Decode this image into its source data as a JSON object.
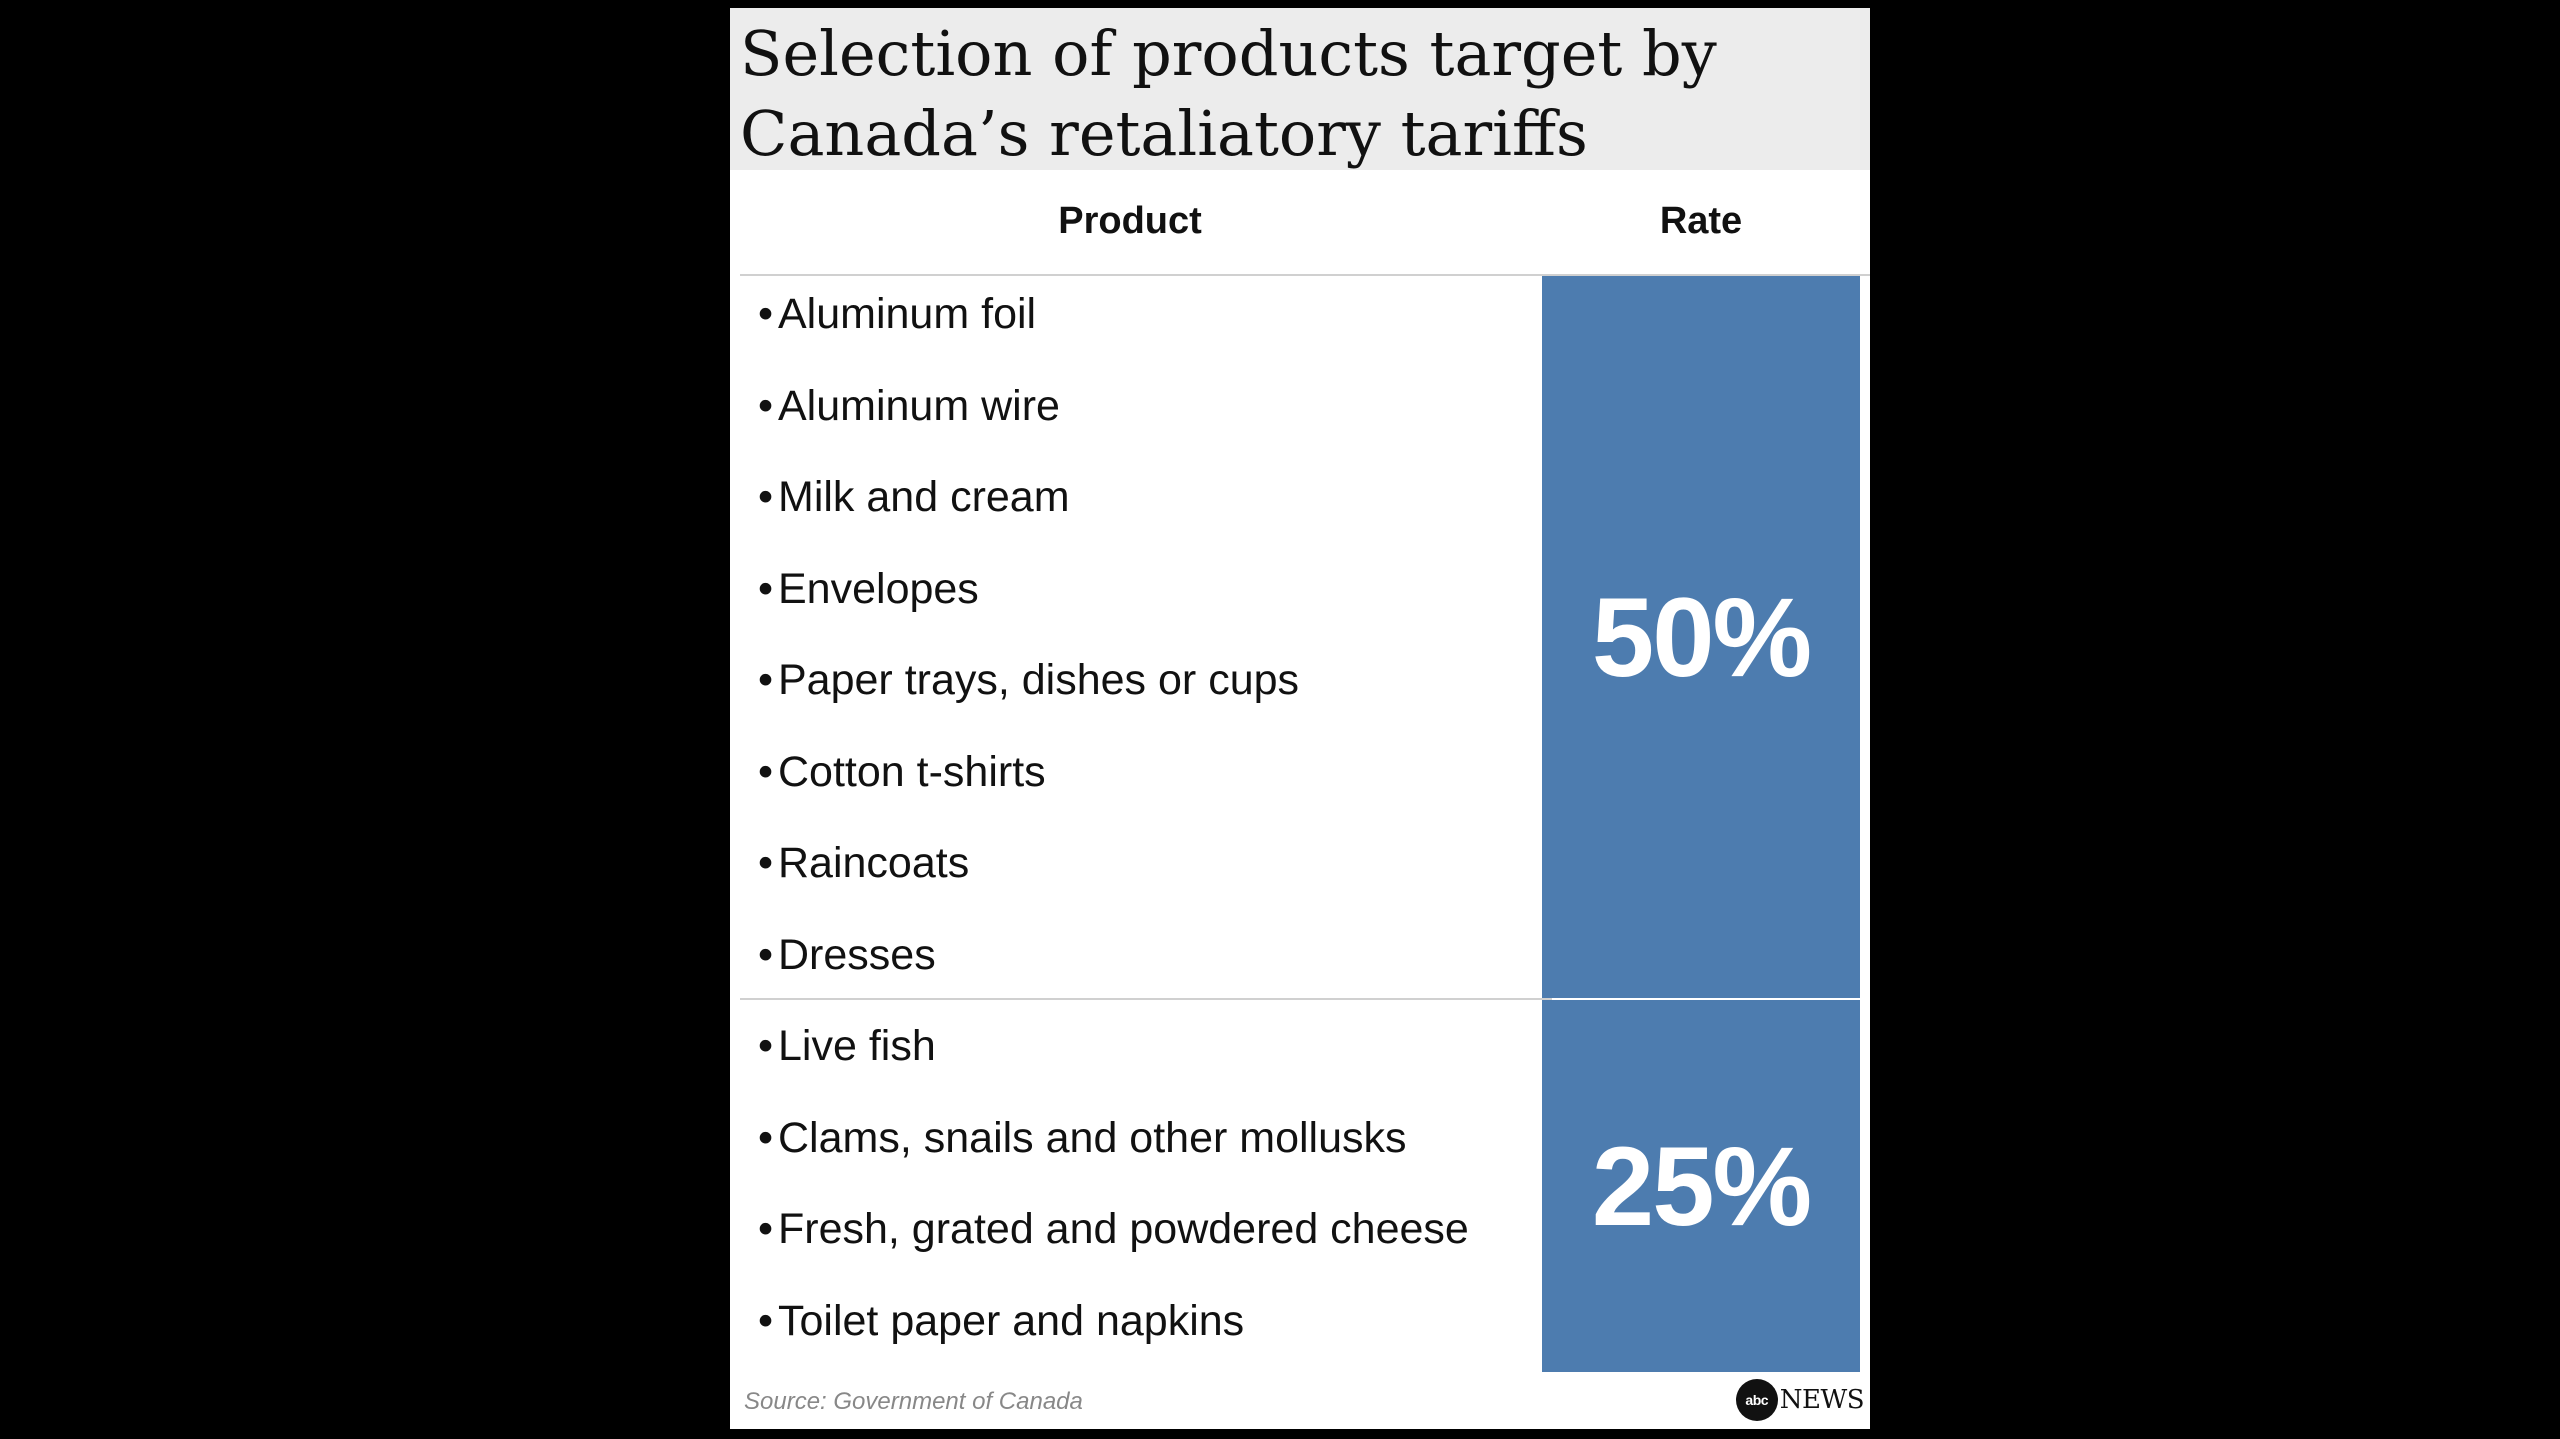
{
  "title": "Selection of products target by Canada’s retaliatory tariffs",
  "table": {
    "headers": {
      "product": "Product",
      "rate": "Rate"
    },
    "groups": [
      {
        "rate": "50%",
        "items": [
          "Aluminum foil",
          "Aluminum wire",
          "Milk and cream",
          "Envelopes",
          "Paper trays, dishes or cups",
          "Cotton t-shirts",
          "Raincoats",
          "Dresses"
        ]
      },
      {
        "rate": "25%",
        "items": [
          "Live fish",
          "Clams, snails and other mollusks",
          "Fresh, grated and powdered cheese",
          "Toilet paper and napkins"
        ]
      }
    ]
  },
  "bullet": "•",
  "footer": {
    "source": "Source: Government of Canada",
    "logo_mark": "abc",
    "logo_text": "NEWS"
  },
  "colors": {
    "rate_fill": "#4d7caf",
    "title_band": "#ececec",
    "background": "#000000"
  }
}
